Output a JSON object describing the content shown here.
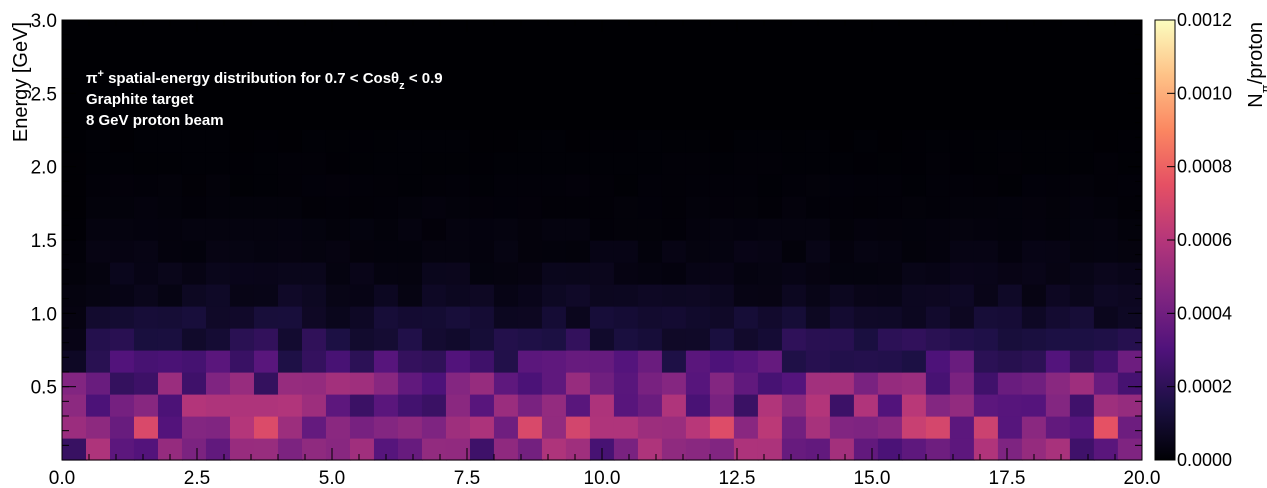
{
  "chart_data": {
    "type": "heatmap",
    "colormap": "magma",
    "annotations": [
      "π⁺ spatial-energy distribution for 0.7 < Cosθz < 0.9",
      "Graphite target",
      "8 GeV proton beam"
    ],
    "xlabel": "",
    "ylabel": "Energy [GeV]",
    "colorbar_label": "Nπ/proton",
    "xlim": [
      0,
      20
    ],
    "ylim": [
      0,
      3
    ],
    "zlim": [
      0,
      0.0012
    ],
    "x_ticks": [
      "0.0",
      "2.5",
      "5.0",
      "7.5",
      "10.0",
      "12.5",
      "15.0",
      "17.5",
      "20.0"
    ],
    "y_ticks": [
      "0.5",
      "1.0",
      "1.5",
      "2.0",
      "2.5",
      "3.0"
    ],
    "z_ticks": [
      "0.0000",
      "0.0002",
      "0.0004",
      "0.0006",
      "0.0008",
      "0.0010",
      "0.0012"
    ],
    "x_bin_width": 0.4444,
    "y_bin_width": 0.15,
    "row_energy_centers": [
      0.075,
      0.225,
      0.375,
      0.525,
      0.675,
      0.825,
      0.975,
      1.125,
      1.275,
      1.425,
      1.575,
      1.725,
      1.875,
      2.025,
      2.175
    ],
    "row_mean_values": [
      0.00042,
      0.00052,
      0.00043,
      0.00038,
      0.00027,
      0.00015,
      9e-05,
      6e-05,
      4e-05,
      3e-05,
      2e-05,
      1.5e-05,
      1e-05,
      7e-06,
      5e-06
    ],
    "grid": false
  }
}
